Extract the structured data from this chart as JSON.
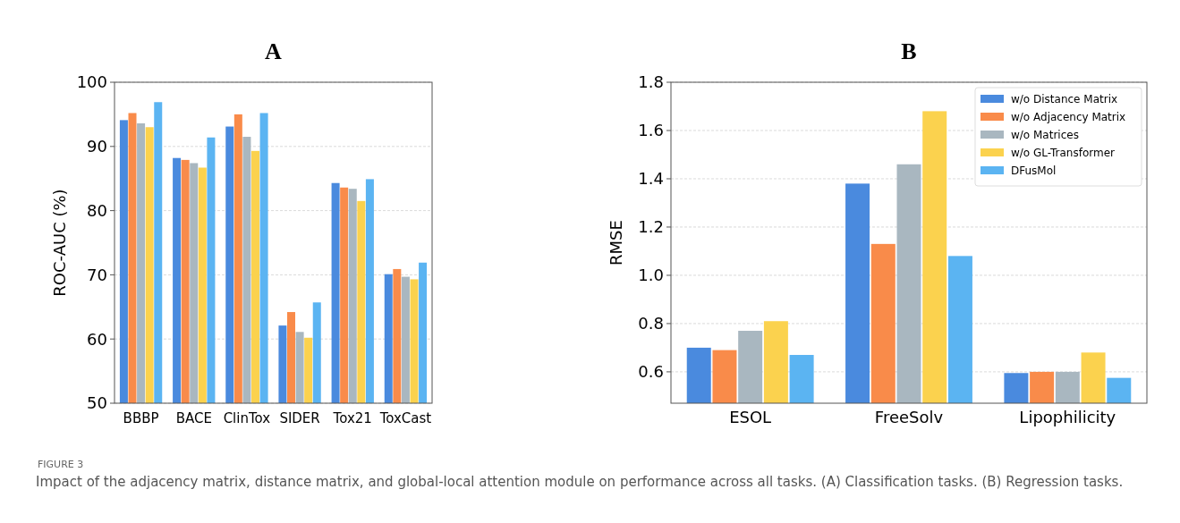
{
  "chart_data": [
    {
      "type": "bar",
      "title": "A",
      "ylabel": "ROC-AUC (%)",
      "categories": [
        "BBBP",
        "BACE",
        "ClinTox",
        "SIDER",
        "Tox21",
        "ToxCast"
      ],
      "ylim": [
        50,
        100
      ],
      "yticks": [
        50,
        60,
        70,
        80,
        90,
        100
      ],
      "grid": "y",
      "legend": false,
      "series": [
        {
          "color": "#4a8ade",
          "values": [
            94.1,
            88.2,
            93.1,
            62.1,
            84.3,
            70.1
          ]
        },
        {
          "color": "#f98b4a",
          "values": [
            95.2,
            87.9,
            95.0,
            64.2,
            83.6,
            70.9
          ]
        },
        {
          "color": "#a9b7c0",
          "values": [
            93.6,
            87.4,
            91.5,
            61.1,
            83.4,
            69.7
          ]
        },
        {
          "color": "#fbd24e",
          "values": [
            93.0,
            86.7,
            89.3,
            60.2,
            81.5,
            69.3
          ]
        },
        {
          "color": "#5bb4f2",
          "values": [
            96.9,
            91.4,
            95.2,
            65.7,
            84.9,
            71.9
          ]
        }
      ]
    },
    {
      "type": "bar",
      "title": "B",
      "ylabel": "RMSE",
      "categories": [
        "ESOL",
        "FreeSolv",
        "Lipophilicity"
      ],
      "ylim": [
        0.47,
        1.8
      ],
      "yticks": [
        {
          "value": 0.6,
          "label": "0.6"
        },
        {
          "value": 0.8,
          "label": "0.8"
        },
        {
          "value": 1.0,
          "label": "1.0"
        },
        {
          "value": 1.2,
          "label": "1.2"
        },
        {
          "value": 1.4,
          "label": "1.4"
        },
        {
          "value": 1.6,
          "label": "1.6"
        },
        {
          "value": 1.8,
          "label": "1.8"
        }
      ],
      "grid": "y",
      "legend": "top right",
      "annotations": [
        "FIGURE 3",
        "Impact of the adjacency matrix, distance matrix, and global-local attention module on performance across all tasks. (A) Classification tasks. (B) Regression tasks."
      ],
      "series": [
        {
          "name": "w/o Distance Matrix",
          "color": "#4a8ade",
          "values": [
            0.7,
            1.38,
            0.595
          ]
        },
        {
          "name": "w/o Adjacency Matrix",
          "color": "#f98b4a",
          "values": [
            0.69,
            1.13,
            0.6
          ]
        },
        {
          "name": "w/o Matrices",
          "color": "#a9b7c0",
          "values": [
            0.77,
            1.46,
            0.6
          ]
        },
        {
          "name": "w/o GL-Transformer",
          "color": "#fbd24e",
          "values": [
            0.81,
            1.68,
            0.68
          ]
        },
        {
          "name": "DFusMol",
          "color": "#5bb4f2",
          "values": [
            0.67,
            1.08,
            0.575
          ]
        }
      ]
    }
  ]
}
